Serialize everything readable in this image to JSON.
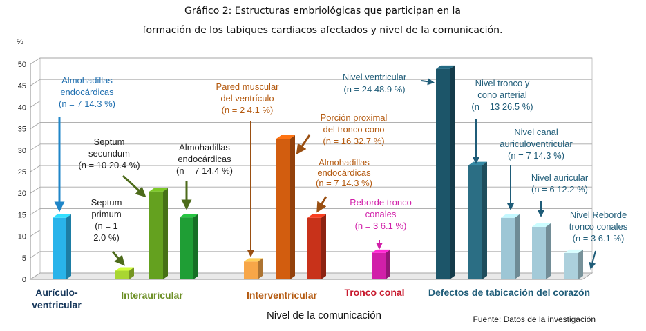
{
  "chart_data": {
    "type": "bar",
    "title_line1": "Gráfico 2: Estructuras embriológicas que participan en la",
    "title_line2": "formación de los tabiques cardiacos afectados y nivel de la comunicación.",
    "ylabel": "%",
    "xlabel": "Nivel de la comunicación",
    "source": "Fuente: Datos de la investigación",
    "ylim": [
      0,
      50
    ],
    "yticks": [
      "0",
      "5",
      "10",
      "15",
      "20",
      "25",
      "30",
      "35",
      "40",
      "45",
      "50"
    ],
    "grid": true,
    "bars": [
      {
        "value": 14.3,
        "color": "#29b3ea",
        "group": 0
      },
      {
        "value": 2.0,
        "color": "#a9d631",
        "group": 1
      },
      {
        "value": 20.4,
        "color": "#64a11f",
        "group": 1
      },
      {
        "value": 14.4,
        "color": "#1f9e35",
        "group": 1
      },
      {
        "value": 4.1,
        "color": "#f7a648",
        "group": 2
      },
      {
        "value": 32.7,
        "color": "#d25d0f",
        "group": 2
      },
      {
        "value": 14.3,
        "color": "#c8321a",
        "group": 2
      },
      {
        "value": 6.1,
        "color": "#d11fa9",
        "group": 3
      },
      {
        "value": 48.9,
        "color": "#1c5569",
        "group": 4
      },
      {
        "value": 26.5,
        "color": "#2b6e84",
        "group": 4
      },
      {
        "value": 14.3,
        "color": "#9dc6d5",
        "group": 4
      },
      {
        "value": 12.2,
        "color": "#a3cad8",
        "group": 4
      },
      {
        "value": 6.1,
        "color": "#acd0dc",
        "group": 4
      }
    ],
    "groups": [
      {
        "label_line1": "Aurículo-",
        "label_line2": "ventricular",
        "color": "#15365a"
      },
      {
        "label_line1": "Interauricular",
        "label_line2": "",
        "color": "#6b8e23"
      },
      {
        "label_line1": "Interventricular",
        "label_line2": "",
        "color": "#b45a10"
      },
      {
        "label_line1": "Tronco conal",
        "label_line2": "",
        "color": "#c8192d"
      },
      {
        "label_line1": "Defectos de tabicación del corazón",
        "label_line2": "",
        "color": "#1f5c78"
      }
    ],
    "annotations": [
      {
        "lines": [
          "Almohadillas",
          "endocárdicas",
          "(n = 7  14.3 %)"
        ],
        "color": "#1f6fb0"
      },
      {
        "lines": [
          "Septum",
          "primum",
          "(n = 1",
          "2.0 %)"
        ],
        "color": "#1e1e1e"
      },
      {
        "lines": [
          "Septum",
          "secundum",
          "(n = 10  20.4 %)"
        ],
        "color": "#1e1e1e"
      },
      {
        "lines": [
          "Almohadillas",
          "endocárdicas",
          "(n = 7   14.4 %)"
        ],
        "color": "#1e1e1e"
      },
      {
        "lines": [
          "Pared muscular",
          "del ventrículo",
          "(n = 2  4.1 %)"
        ],
        "color": "#b45a10"
      },
      {
        "lines": [
          "Porción proximal",
          "del tronco cono",
          "(n = 16 32.7 %)"
        ],
        "color": "#b45a10"
      },
      {
        "lines": [
          "Almohadillas",
          "endocárdicas",
          "(n =   7  14.3 %)"
        ],
        "color": "#b45a10"
      },
      {
        "lines": [
          "Reborde tronco",
          "conales",
          "(n = 3  6.1 %)"
        ],
        "color": "#d11fa9"
      },
      {
        "lines": [
          "Nivel ventricular",
          "(n = 24  48.9 %)"
        ],
        "color": "#1f5c78"
      },
      {
        "lines": [
          "Nivel tronco y",
          "cono arterial",
          "(n = 13  26.5 %)"
        ],
        "color": "#1f5c78"
      },
      {
        "lines": [
          "Nivel canal",
          "auriculoventricular",
          "(n = 7  14.3 %)"
        ],
        "color": "#1f5c78"
      },
      {
        "lines": [
          "Nivel auricular",
          "(n = 6  12.2 %)"
        ],
        "color": "#1f5c78"
      },
      {
        "lines": [
          "Nivel Reborde",
          "tronco conales",
          "(n = 3  6.1 %)"
        ],
        "color": "#1f5c78"
      }
    ]
  }
}
